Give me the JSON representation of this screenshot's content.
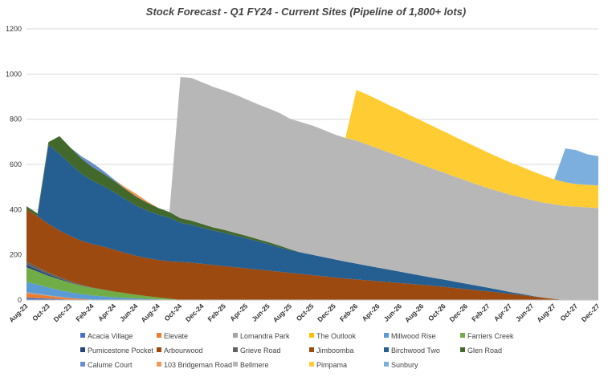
{
  "chart_data": {
    "type": "area",
    "title": "Stock Forecast - Q1 FY24 - Current Sites (Pipeline of 1,800+ lots)",
    "xlabel": "",
    "ylabel": "",
    "ylim": [
      0,
      1200
    ],
    "yticks": [
      0,
      200,
      400,
      600,
      800,
      1000,
      1200
    ],
    "grid": true,
    "legend_position": "bottom",
    "x": [
      "Aug-23",
      "Sep-23",
      "Oct-23",
      "Nov-23",
      "Dec-23",
      "Jan-24",
      "Feb-24",
      "Mar-24",
      "Apr-24",
      "May-24",
      "Jun-24",
      "Jul-24",
      "Aug-24",
      "Sep-24",
      "Oct-24",
      "Nov-24",
      "Dec-24",
      "Jan-25",
      "Feb-25",
      "Mar-25",
      "Apr-25",
      "May-25",
      "Jun-25",
      "Jul-25",
      "Aug-25",
      "Sep-25",
      "Oct-25",
      "Nov-25",
      "Dec-25",
      "Jan-26",
      "Feb-26",
      "Mar-26",
      "Apr-26",
      "May-26",
      "Jun-26",
      "Jul-26",
      "Aug-26",
      "Sep-26",
      "Oct-26",
      "Nov-26",
      "Dec-26",
      "Jan-27",
      "Feb-27",
      "Mar-27",
      "Apr-27",
      "May-27",
      "Jun-27",
      "Jul-27",
      "Aug-27",
      "Sep-27",
      "Oct-27",
      "Nov-27",
      "Dec-27"
    ],
    "x_tick_labels": [
      "Aug-23",
      "Oct-23",
      "Dec-23",
      "Feb-24",
      "Apr-24",
      "Jun-24",
      "Aug-24",
      "Oct-24",
      "Dec-24",
      "Feb-25",
      "Apr-25",
      "Jun-25",
      "Aug-25",
      "Oct-25",
      "Dec-25",
      "Feb-26",
      "Apr-26",
      "Jun-26",
      "Aug-26",
      "Oct-26",
      "Dec-26",
      "Feb-27",
      "Apr-27",
      "Jun-27",
      "Aug-27",
      "Oct-27",
      "Dec-27"
    ],
    "series": [
      {
        "name": "Acacia Village",
        "color": "#4472c4",
        "values": [
          10,
          8,
          6,
          4,
          2,
          1,
          0,
          0,
          0,
          0,
          0,
          0,
          0,
          0,
          0,
          0,
          0,
          0,
          0,
          0,
          0,
          0,
          0,
          0,
          0,
          0,
          0,
          0,
          0,
          0,
          0,
          0,
          0,
          0,
          0,
          0,
          0,
          0,
          0,
          0,
          0,
          0,
          0,
          0,
          0,
          0,
          0,
          0,
          0,
          0,
          0,
          0,
          0
        ]
      },
      {
        "name": "Elevate",
        "color": "#ed7d31",
        "values": [
          20,
          16,
          12,
          9,
          6,
          4,
          2,
          1,
          0,
          0,
          0,
          0,
          0,
          0,
          0,
          0,
          0,
          0,
          0,
          0,
          0,
          0,
          0,
          0,
          0,
          0,
          0,
          0,
          0,
          0,
          0,
          0,
          0,
          0,
          0,
          0,
          0,
          0,
          0,
          0,
          0,
          0,
          0,
          0,
          0,
          0,
          0,
          0,
          0,
          0,
          0,
          0,
          0
        ]
      },
      {
        "name": "Lomandra Park",
        "color": "#a5a5a5",
        "values": [
          5,
          4,
          3,
          2,
          1,
          0,
          0,
          0,
          0,
          0,
          0,
          0,
          0,
          0,
          0,
          0,
          0,
          0,
          0,
          0,
          0,
          0,
          0,
          0,
          0,
          0,
          0,
          0,
          0,
          0,
          0,
          0,
          0,
          0,
          0,
          0,
          0,
          0,
          0,
          0,
          0,
          0,
          0,
          0,
          0,
          0,
          0,
          0,
          0,
          0,
          0,
          0,
          0
        ]
      },
      {
        "name": "The Outlook",
        "color": "#ffc000",
        "values": [
          0,
          0,
          0,
          0,
          0,
          0,
          0,
          0,
          0,
          0,
          0,
          0,
          0,
          0,
          0,
          0,
          0,
          0,
          0,
          0,
          0,
          0,
          0,
          0,
          0,
          0,
          0,
          0,
          0,
          0,
          0,
          0,
          0,
          0,
          0,
          0,
          0,
          0,
          0,
          0,
          0,
          0,
          0,
          0,
          0,
          0,
          0,
          0,
          0,
          0,
          0,
          0,
          0
        ]
      },
      {
        "name": "Millwood Rise",
        "color": "#5b9bd5",
        "values": [
          45,
          40,
          34,
          29,
          25,
          21,
          18,
          15,
          12,
          9,
          7,
          5,
          3,
          2,
          0,
          0,
          0,
          0,
          0,
          0,
          0,
          0,
          0,
          0,
          0,
          0,
          0,
          0,
          0,
          0,
          0,
          0,
          0,
          0,
          0,
          0,
          0,
          0,
          0,
          0,
          0,
          0,
          0,
          0,
          0,
          0,
          0,
          0,
          0,
          0,
          0,
          0,
          0
        ]
      },
      {
        "name": "Farriers Creek",
        "color": "#70ad47",
        "values": [
          65,
          58,
          52,
          47,
          42,
          37,
          33,
          29,
          25,
          21,
          16,
          12,
          8,
          4,
          0,
          0,
          0,
          0,
          0,
          0,
          0,
          0,
          0,
          0,
          0,
          0,
          0,
          0,
          0,
          0,
          0,
          0,
          0,
          0,
          0,
          0,
          0,
          0,
          0,
          0,
          0,
          0,
          0,
          0,
          0,
          0,
          0,
          0,
          0,
          0,
          0,
          0,
          0
        ]
      },
      {
        "name": "Pumicestone Pocket",
        "color": "#264478",
        "values": [
          10,
          8,
          6,
          4,
          2,
          1,
          0,
          0,
          0,
          0,
          0,
          0,
          0,
          0,
          0,
          0,
          0,
          0,
          0,
          0,
          0,
          0,
          0,
          0,
          0,
          0,
          0,
          0,
          0,
          0,
          0,
          0,
          0,
          0,
          0,
          0,
          0,
          0,
          0,
          0,
          0,
          0,
          0,
          0,
          0,
          0,
          0,
          0,
          0,
          0,
          0,
          0,
          0
        ]
      },
      {
        "name": "Arbourwood",
        "color": "#9e480e",
        "values": [
          0,
          0,
          0,
          0,
          0,
          0,
          0,
          0,
          0,
          0,
          0,
          0,
          0,
          0,
          0,
          0,
          0,
          0,
          0,
          0,
          0,
          0,
          0,
          0,
          0,
          0,
          0,
          0,
          0,
          0,
          0,
          0,
          0,
          0,
          0,
          0,
          0,
          0,
          0,
          0,
          0,
          0,
          0,
          0,
          0,
          0,
          0,
          0,
          0,
          0,
          0,
          0,
          0
        ]
      },
      {
        "name": "Grieve Road",
        "color": "#636363",
        "values": [
          15,
          12,
          9,
          7,
          5,
          3,
          2,
          1,
          0,
          0,
          0,
          0,
          0,
          0,
          0,
          0,
          0,
          0,
          0,
          0,
          0,
          0,
          0,
          0,
          0,
          0,
          0,
          0,
          0,
          0,
          0,
          0,
          0,
          0,
          0,
          0,
          0,
          0,
          0,
          0,
          0,
          0,
          0,
          0,
          0,
          0,
          0,
          0,
          0,
          0,
          0,
          0,
          0
        ]
      },
      {
        "name": "Jimboomba",
        "color": "#9c4a10",
        "values": [
          230,
          225,
          215,
          205,
          200,
          195,
          192,
          190,
          185,
          178,
          172,
          168,
          166,
          165,
          168,
          165,
          160,
          155,
          150,
          145,
          140,
          135,
          130,
          125,
          120,
          115,
          110,
          105,
          100,
          95,
          91,
          87,
          83,
          79,
          75,
          71,
          67,
          63,
          58,
          53,
          48,
          43,
          38,
          33,
          27,
          22,
          16,
          10,
          5,
          0,
          0,
          0,
          0
        ]
      },
      {
        "name": "Birchwood Two",
        "color": "#255e91",
        "values": [
          0,
          0,
          350,
          340,
          318,
          297,
          280,
          268,
          254,
          238,
          222,
          210,
          200,
          193,
          174,
          168,
          160,
          152,
          147,
          140,
          133,
          125,
          117,
          108,
          100,
          95,
          90,
          85,
          80,
          75,
          70,
          65,
          60,
          55,
          50,
          45,
          40,
          35,
          32,
          28,
          24,
          20,
          16,
          12,
          8,
          5,
          2,
          0,
          0,
          0,
          0,
          0,
          0
        ]
      },
      {
        "name": "Glen Road",
        "color": "#43682b",
        "values": [
          15,
          12,
          12,
          78,
          73,
          67,
          61,
          55,
          50,
          45,
          40,
          35,
          30,
          25,
          20,
          18,
          16,
          14,
          13,
          12,
          11,
          10,
          9,
          8,
          4,
          0,
          0,
          0,
          0,
          0,
          0,
          0,
          0,
          0,
          0,
          0,
          0,
          0,
          0,
          0,
          0,
          0,
          0,
          0,
          0,
          0,
          0,
          0,
          0,
          0,
          0,
          0,
          0
        ]
      },
      {
        "name": "Calume Court",
        "color": "#698ed0",
        "values": [
          0,
          0,
          0,
          0,
          0,
          10,
          18,
          12,
          6,
          0,
          0,
          0,
          0,
          0,
          0,
          0,
          0,
          0,
          0,
          0,
          0,
          0,
          0,
          0,
          0,
          0,
          0,
          0,
          0,
          0,
          0,
          0,
          0,
          0,
          0,
          0,
          0,
          0,
          0,
          0,
          0,
          0,
          0,
          0,
          0,
          0,
          0,
          0,
          0,
          0,
          0,
          0,
          0
        ]
      },
      {
        "name": "103 Bridgeman Road",
        "color": "#f1975a",
        "values": [
          0,
          0,
          0,
          0,
          0,
          0,
          0,
          0,
          0,
          8,
          12,
          6,
          0,
          0,
          0,
          0,
          0,
          0,
          0,
          0,
          0,
          0,
          0,
          0,
          0,
          0,
          0,
          0,
          0,
          0,
          0,
          0,
          0,
          0,
          0,
          0,
          0,
          0,
          0,
          0,
          0,
          0,
          0,
          0,
          0,
          0,
          0,
          0,
          0,
          0,
          0,
          0,
          0
        ]
      },
      {
        "name": "Bellmere",
        "color": "#b7b7b7",
        "values": [
          0,
          0,
          0,
          0,
          0,
          0,
          0,
          0,
          0,
          0,
          0,
          0,
          0,
          0,
          625,
          632,
          627,
          622,
          617,
          612,
          604,
          597,
          592,
          587,
          577,
          577,
          572,
          563,
          553,
          547,
          545,
          536,
          527,
          518,
          509,
          500,
          491,
          482,
          473,
          464,
          456,
          448,
          441,
          435,
          431,
          427,
          424,
          421,
          419,
          416,
          413,
          410,
          407
        ]
      },
      {
        "name": "Pimpama",
        "color": "#ffcd33",
        "values": [
          0,
          0,
          0,
          0,
          0,
          0,
          0,
          0,
          0,
          0,
          0,
          0,
          0,
          0,
          0,
          0,
          0,
          0,
          0,
          0,
          0,
          0,
          0,
          0,
          0,
          0,
          0,
          0,
          0,
          0,
          224,
          221,
          216,
          210,
          205,
          199,
          194,
          188,
          182,
          176,
          170,
          164,
          157,
          150,
          143,
          136,
          128,
          120,
          110,
          105,
          100,
          100,
          100
        ]
      },
      {
        "name": "Sunbury",
        "color": "#7cafdd",
        "values": [
          0,
          0,
          0,
          0,
          0,
          0,
          0,
          0,
          0,
          0,
          0,
          0,
          0,
          0,
          0,
          0,
          0,
          0,
          0,
          0,
          0,
          0,
          0,
          0,
          0,
          0,
          0,
          0,
          0,
          0,
          0,
          0,
          0,
          0,
          0,
          0,
          0,
          0,
          0,
          0,
          0,
          0,
          0,
          0,
          0,
          0,
          0,
          0,
          0,
          150,
          150,
          135,
          130
        ]
      }
    ]
  }
}
